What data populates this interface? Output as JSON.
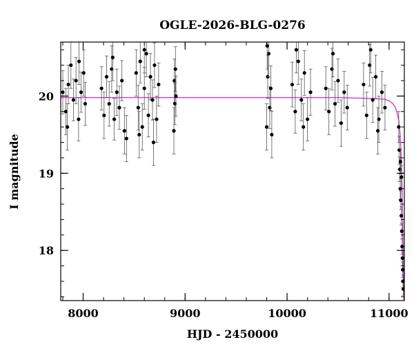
{
  "chart_data": {
    "type": "scatter",
    "title": "OGLE-2026-BLG-0276",
    "xlabel": "HJD - 2450000",
    "ylabel": "I magnitude",
    "xlim": [
      7780,
      11150
    ],
    "ylim": [
      20.7,
      17.35
    ],
    "y_inverted": true,
    "x_ticks": [
      8000,
      9000,
      10000,
      11000
    ],
    "y_ticks": [
      18,
      19,
      20
    ],
    "x_minor_step": 200,
    "y_minor_step": 0.2,
    "grid": false,
    "legend": "none",
    "colors": {
      "points": "#000000",
      "errorbars": "#555555",
      "model": "#d633d6",
      "frame": "#000000"
    },
    "series": [
      {
        "kind": "observed",
        "marker": "filled-circle",
        "error_bars": true,
        "points": [
          [
            7800,
            20.05,
            0.28
          ],
          [
            7830,
            19.8,
            0.3
          ],
          [
            7855,
            20.15,
            0.25
          ],
          [
            7880,
            20.4,
            0.3
          ],
          [
            7905,
            19.95,
            0.27
          ],
          [
            7930,
            20.2,
            0.3
          ],
          [
            7955,
            19.7,
            0.28
          ],
          [
            7980,
            20.05,
            0.26
          ],
          [
            8005,
            20.3,
            0.3
          ],
          [
            8020,
            19.9,
            0.28
          ],
          [
            7845,
            19.6,
            0.3
          ],
          [
            7960,
            20.45,
            0.3
          ],
          [
            8180,
            20.1,
            0.28
          ],
          [
            8205,
            19.75,
            0.3
          ],
          [
            8230,
            20.25,
            0.27
          ],
          [
            8255,
            19.9,
            0.29
          ],
          [
            8280,
            20.35,
            0.3
          ],
          [
            8305,
            19.7,
            0.27
          ],
          [
            8330,
            20.05,
            0.3
          ],
          [
            8355,
            19.85,
            0.28
          ],
          [
            8380,
            20.2,
            0.26
          ],
          [
            8405,
            19.55,
            0.3
          ],
          [
            8425,
            19.45,
            0.3
          ],
          [
            8290,
            20.5,
            0.3
          ],
          [
            8520,
            20.3,
            0.3
          ],
          [
            8540,
            19.85,
            0.29
          ],
          [
            8560,
            20.45,
            0.28
          ],
          [
            8580,
            19.6,
            0.3
          ],
          [
            8600,
            20.1,
            0.27
          ],
          [
            8620,
            20.55,
            0.3
          ],
          [
            8640,
            19.75,
            0.28
          ],
          [
            8660,
            20.25,
            0.3
          ],
          [
            8680,
            19.95,
            0.26
          ],
          [
            8700,
            20.4,
            0.29
          ],
          [
            8720,
            19.7,
            0.3
          ],
          [
            8740,
            20.15,
            0.28
          ],
          [
            8550,
            19.5,
            0.3
          ],
          [
            8690,
            19.4,
            0.3
          ],
          [
            8600,
            20.6,
            0.3
          ],
          [
            8890,
            19.55,
            0.3
          ],
          [
            8895,
            20.2,
            0.28
          ],
          [
            8900,
            19.9,
            0.27
          ],
          [
            8905,
            20.35,
            0.29
          ],
          [
            8910,
            20.0,
            0.26
          ],
          [
            9800,
            19.6,
            0.3
          ],
          [
            9810,
            20.25,
            0.28
          ],
          [
            9820,
            20.55,
            0.3
          ],
          [
            9830,
            19.85,
            0.27
          ],
          [
            9840,
            20.1,
            0.29
          ],
          [
            9850,
            19.5,
            0.3
          ],
          [
            9805,
            20.65,
            0.3
          ],
          [
            10050,
            20.15,
            0.29
          ],
          [
            10080,
            19.8,
            0.28
          ],
          [
            10110,
            20.45,
            0.3
          ],
          [
            10140,
            19.95,
            0.27
          ],
          [
            10170,
            20.3,
            0.29
          ],
          [
            10200,
            19.7,
            0.28
          ],
          [
            10230,
            20.05,
            0.3
          ],
          [
            10090,
            20.6,
            0.3
          ],
          [
            10160,
            19.6,
            0.3
          ],
          [
            10380,
            20.1,
            0.28
          ],
          [
            10410,
            19.8,
            0.3
          ],
          [
            10440,
            20.35,
            0.27
          ],
          [
            10470,
            19.9,
            0.29
          ],
          [
            10500,
            20.2,
            0.28
          ],
          [
            10530,
            19.65,
            0.3
          ],
          [
            10560,
            20.05,
            0.27
          ],
          [
            10590,
            19.85,
            0.29
          ],
          [
            10450,
            20.55,
            0.3
          ],
          [
            10750,
            20.15,
            0.28
          ],
          [
            10780,
            19.75,
            0.3
          ],
          [
            10810,
            20.4,
            0.27
          ],
          [
            10840,
            19.95,
            0.29
          ],
          [
            10870,
            20.25,
            0.28
          ],
          [
            10900,
            19.7,
            0.3
          ],
          [
            10930,
            20.05,
            0.27
          ],
          [
            10960,
            19.85,
            0.29
          ],
          [
            10820,
            20.6,
            0.3
          ],
          [
            10890,
            19.55,
            0.3
          ],
          [
            11095,
            19.6,
            0.2
          ],
          [
            11100,
            19.3,
            0.18
          ],
          [
            11105,
            19.05,
            0.16
          ],
          [
            11110,
            18.8,
            0.14
          ],
          [
            11115,
            18.65,
            0.12
          ],
          [
            11120,
            18.45,
            0.12
          ],
          [
            11125,
            18.25,
            0.1
          ],
          [
            11128,
            18.05,
            0.1
          ],
          [
            11131,
            17.9,
            0.1
          ],
          [
            11134,
            17.75,
            0.1
          ],
          [
            11137,
            17.6,
            0.08
          ],
          [
            11140,
            17.5,
            0.08
          ],
          [
            11112,
            19.15,
            0.16
          ],
          [
            11122,
            18.95,
            0.15
          ]
        ]
      },
      {
        "kind": "model",
        "line": "solid",
        "x": [
          7780,
          8500,
          9000,
          9500,
          10000,
          10500,
          10800,
          10950,
          11000,
          11030,
          11060,
          11080,
          11095,
          11105,
          11115,
          11122,
          11128,
          11133,
          11137,
          11141,
          11145
        ],
        "y": [
          19.98,
          19.98,
          19.98,
          19.98,
          19.98,
          19.98,
          19.97,
          19.96,
          19.94,
          19.91,
          19.86,
          19.78,
          19.68,
          19.55,
          19.35,
          19.1,
          18.8,
          18.45,
          18.1,
          17.75,
          17.35
        ]
      }
    ]
  }
}
